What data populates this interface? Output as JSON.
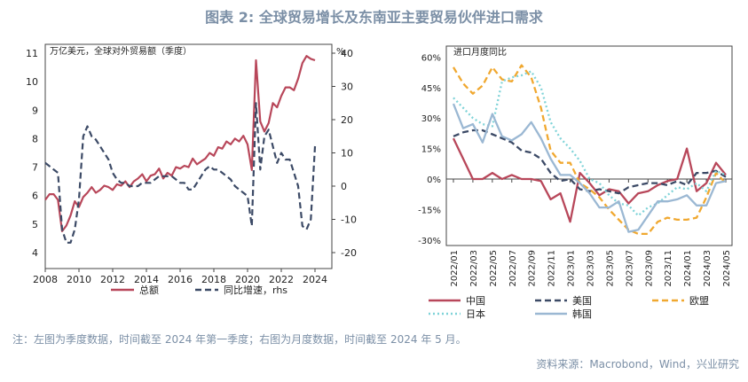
{
  "title": "图表 2: 全球贸易增长及东南亚主要贸易伙伴进口需求",
  "note": "注：左图为季度数据，时间截至 2024 年第一季度；右图为月度数据，时间截至 2024 年 5 月。",
  "source": "资料来源：Macrobond，Wind，兴业研究",
  "colors": {
    "red": "#b8475a",
    "navy": "#3c4a66",
    "orange": "#f0a830",
    "cyan": "#7fd3d8",
    "lightblue": "#9bb8d3"
  },
  "chart_data": [
    {
      "type": "line",
      "left_unit": "万亿美元，全球对外贸易额（季度）",
      "right_unit": "%",
      "x_ticks": [
        "2008",
        "2010",
        "2012",
        "2014",
        "2016",
        "2018",
        "2020",
        "2022",
        "2024"
      ],
      "y_left_ticks": [
        "4",
        "5",
        "6",
        "7",
        "8",
        "9",
        "10",
        "11"
      ],
      "y_right_ticks": [
        "-20",
        "-10",
        "0",
        "10",
        "20",
        "30",
        "40"
      ],
      "ylim_left": [
        4,
        11.5
      ],
      "ylim_right": [
        -20,
        40
      ],
      "xlim": [
        2008,
        2025
      ],
      "series": [
        {
          "name": "总额",
          "axis": "left",
          "style": "solid",
          "x": [
            2008.0,
            2008.25,
            2008.5,
            2008.75,
            2009.0,
            2009.25,
            2009.5,
            2009.75,
            2010.0,
            2010.25,
            2010.5,
            2010.75,
            2011.0,
            2011.25,
            2011.5,
            2011.75,
            2012.0,
            2012.25,
            2012.5,
            2012.75,
            2013.0,
            2013.25,
            2013.5,
            2013.75,
            2014.0,
            2014.25,
            2014.5,
            2014.75,
            2015.0,
            2015.25,
            2015.5,
            2015.75,
            2016.0,
            2016.25,
            2016.5,
            2016.75,
            2017.0,
            2017.25,
            2017.5,
            2017.75,
            2018.0,
            2018.25,
            2018.5,
            2018.75,
            2019.0,
            2019.25,
            2019.5,
            2019.75,
            2020.0,
            2020.25,
            2020.5,
            2020.75,
            2021.0,
            2021.25,
            2021.5,
            2021.75,
            2022.0,
            2022.25,
            2022.5,
            2022.75,
            2023.0,
            2023.25,
            2023.5,
            2023.75,
            2024.0
          ],
          "values": [
            5.85,
            6.05,
            6.05,
            5.85,
            4.75,
            4.95,
            5.3,
            5.8,
            5.6,
            5.95,
            6.1,
            6.3,
            6.1,
            6.2,
            6.35,
            6.3,
            6.2,
            6.4,
            6.35,
            6.5,
            6.3,
            6.5,
            6.6,
            6.75,
            6.5,
            6.7,
            6.75,
            6.95,
            6.6,
            6.8,
            6.7,
            7.0,
            6.95,
            7.05,
            7.0,
            7.3,
            7.1,
            7.2,
            7.3,
            7.5,
            7.4,
            7.7,
            7.65,
            7.9,
            7.8,
            8.0,
            7.9,
            8.1,
            7.8,
            6.9,
            10.75,
            8.6,
            8.25,
            8.55,
            9.25,
            9.1,
            9.5,
            9.8,
            9.8,
            9.7,
            10.1,
            10.65,
            10.9,
            10.8,
            10.75
          ],
          "color": "#b8475a"
        },
        {
          "name": "同比增速，rhs",
          "axis": "right",
          "style": "dashed",
          "x": [
            2008.0,
            2008.25,
            2008.5,
            2008.75,
            2009.0,
            2009.25,
            2009.5,
            2009.75,
            2010.0,
            2010.25,
            2010.5,
            2010.75,
            2011.0,
            2011.25,
            2011.5,
            2011.75,
            2012.0,
            2012.25,
            2012.5,
            2012.75,
            2013.0,
            2013.25,
            2013.5,
            2013.75,
            2014.0,
            2014.25,
            2014.5,
            2014.75,
            2015.0,
            2015.25,
            2015.5,
            2015.75,
            2016.0,
            2016.25,
            2016.5,
            2016.75,
            2017.0,
            2017.25,
            2017.5,
            2017.75,
            2018.0,
            2018.25,
            2018.5,
            2018.75,
            2019.0,
            2019.25,
            2019.5,
            2019.75,
            2020.0,
            2020.25,
            2020.5,
            2020.75,
            2021.0,
            2021.25,
            2021.5,
            2021.75,
            2022.0,
            2022.25,
            2022.5,
            2022.75,
            2023.0,
            2023.25,
            2023.5,
            2023.75,
            2024.0
          ],
          "values": [
            7,
            6,
            5,
            4,
            -13,
            -17,
            -17,
            -13,
            -4,
            15,
            18,
            15,
            14,
            12,
            10,
            8,
            4,
            2,
            1,
            1,
            0,
            0,
            0,
            1,
            1,
            1,
            2,
            3,
            3,
            3,
            3,
            2,
            1,
            1,
            -1,
            -1,
            1,
            3,
            5,
            6,
            5,
            5,
            4,
            3,
            2,
            0,
            -1,
            -2,
            -3,
            -12,
            25,
            5,
            15,
            17,
            12,
            7,
            10,
            8,
            8,
            4,
            0,
            -12,
            -13,
            -10,
            12
          ],
          "color": "#3c4a66"
        }
      ]
    },
    {
      "type": "line",
      "unit": "进口月度同比",
      "x_ticks": [
        "2022/01",
        "2022/03",
        "2022/05",
        "2022/07",
        "2022/09",
        "2022/11",
        "2023/01",
        "2023/03",
        "2023/05",
        "2023/07",
        "2023/09",
        "2023/11",
        "2024/01",
        "2024/03",
        "2024/05"
      ],
      "y_ticks": [
        "60%",
        "45%",
        "30%",
        "15%",
        "0%",
        "-15%",
        "-30%"
      ],
      "ylim": [
        -30,
        60
      ],
      "months": [
        "2022/01",
        "2022/02",
        "2022/03",
        "2022/04",
        "2022/05",
        "2022/06",
        "2022/07",
        "2022/08",
        "2022/09",
        "2022/10",
        "2022/11",
        "2022/12",
        "2023/01",
        "2023/02",
        "2023/03",
        "2023/04",
        "2023/05",
        "2023/06",
        "2023/07",
        "2023/08",
        "2023/09",
        "2023/10",
        "2023/11",
        "2023/12",
        "2024/01",
        "2024/02",
        "2024/03",
        "2024/04",
        "2024/05"
      ],
      "series": [
        {
          "name": "中国",
          "style": "solid",
          "color": "#b8475a",
          "values": [
            20,
            10,
            0,
            0,
            3,
            0,
            2,
            0,
            0,
            -1,
            -10,
            -7,
            -21,
            3,
            -2,
            -8,
            -5,
            -6,
            -12,
            -7,
            -6,
            -3,
            -1,
            0,
            15,
            -6,
            -2,
            8,
            2
          ]
        },
        {
          "name": "美国",
          "style": "dashed",
          "color": "#3c4a66",
          "values": [
            21,
            23,
            24,
            24,
            22,
            20,
            18,
            14,
            13,
            10,
            3,
            -1,
            0,
            -5,
            -6,
            -5,
            -6,
            -7,
            -4,
            -3,
            -2,
            -2,
            -3,
            -1,
            -3,
            3,
            3,
            4,
            1
          ]
        },
        {
          "name": "欧盟",
          "style": "dashed",
          "color": "#f0a830",
          "values": [
            55,
            47,
            42,
            46,
            55,
            49,
            48,
            56,
            50,
            35,
            14,
            8,
            8,
            -2,
            -5,
            -9,
            -15,
            -20,
            -25,
            -27,
            -27,
            -21,
            -19,
            -20,
            -20,
            -19,
            -9,
            3,
            -2
          ]
        },
        {
          "name": "日本",
          "style": "dotted",
          "color": "#7fd3d8",
          "values": [
            40,
            35,
            30,
            27,
            26,
            48,
            50,
            51,
            53,
            45,
            28,
            20,
            15,
            9,
            0,
            -2,
            -8,
            -12,
            -13,
            -18,
            -14,
            -12,
            -8,
            -4,
            -5,
            -2,
            -6,
            4,
            2
          ]
        },
        {
          "name": "韩国",
          "style": "solid",
          "color": "#9bb8d3",
          "values": [
            37,
            25,
            27,
            18,
            32,
            21,
            19,
            22,
            28,
            20,
            10,
            2,
            2,
            -2,
            -7,
            -14,
            -14,
            -11,
            -26,
            -25,
            -18,
            -11,
            -11,
            -10,
            -8,
            -13,
            -13,
            -2,
            -1
          ]
        }
      ]
    }
  ]
}
